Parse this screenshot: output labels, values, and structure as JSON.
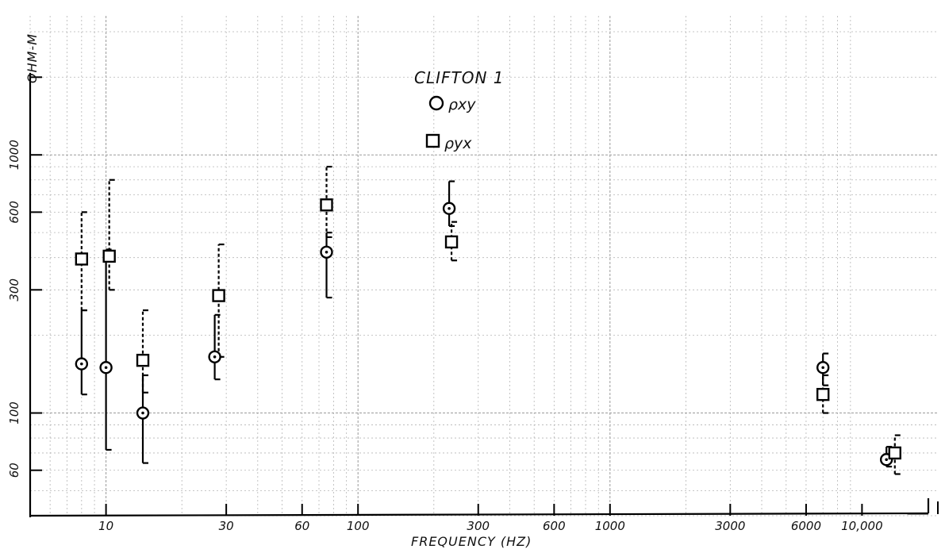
{
  "chart_data": {
    "type": "scatter",
    "title": "CLIFTON 1",
    "xlabel": "FREQUENCY (HZ)",
    "ylabel": "OHM-M",
    "x_scale": "log",
    "y_scale": "log",
    "xlim": [
      5,
      20000
    ],
    "ylim": [
      40,
      3000
    ],
    "x_ticks": [
      {
        "value": 10,
        "label": "10"
      },
      {
        "value": 30,
        "label": "30"
      },
      {
        "value": 60,
        "label": "60"
      },
      {
        "value": 100,
        "label": "100"
      },
      {
        "value": 300,
        "label": "300"
      },
      {
        "value": 600,
        "label": "600"
      },
      {
        "value": 1000,
        "label": "1000"
      },
      {
        "value": 3000,
        "label": "3000"
      },
      {
        "value": 6000,
        "label": "6000"
      },
      {
        "value": 10000,
        "label": "10,000"
      }
    ],
    "x_ticks_unlabeled": [
      20000
    ],
    "y_ticks": [
      {
        "value": 60,
        "label": "60"
      },
      {
        "value": 100,
        "label": "100"
      },
      {
        "value": 300,
        "label": "300"
      },
      {
        "value": 600,
        "label": "600"
      },
      {
        "value": 1000,
        "label": "1000"
      }
    ],
    "y_ticks_unlabeled": [
      2000
    ],
    "grid": true,
    "legend_position": "top-center",
    "series": [
      {
        "name": "ρxy",
        "marker": "circle",
        "errorbar_style": "solid",
        "points": [
          {
            "x": 8,
            "y": 155,
            "ylo": 118,
            "yhi": 250
          },
          {
            "x": 10,
            "y": 150,
            "ylo": 72,
            "yhi": 430
          },
          {
            "x": 14,
            "y": 100,
            "ylo": 64,
            "yhi": 140
          },
          {
            "x": 27,
            "y": 165,
            "ylo": 135,
            "yhi": 240
          },
          {
            "x": 75,
            "y": 420,
            "ylo": 280,
            "yhi": 500
          },
          {
            "x": 230,
            "y": 620,
            "ylo": 530,
            "yhi": 790
          },
          {
            "x": 7000,
            "y": 150,
            "ylo": 128,
            "yhi": 170
          },
          {
            "x": 12500,
            "y": 66,
            "ylo": 62,
            "yhi": 74
          }
        ]
      },
      {
        "name": "ρyx",
        "marker": "square",
        "errorbar_style": "dashed",
        "points": [
          {
            "x": 8,
            "y": 395,
            "ylo": 250,
            "yhi": 600
          },
          {
            "x": 10.3,
            "y": 405,
            "ylo": 300,
            "yhi": 800
          },
          {
            "x": 14,
            "y": 160,
            "ylo": 120,
            "yhi": 250
          },
          {
            "x": 28,
            "y": 285,
            "ylo": 165,
            "yhi": 450
          },
          {
            "x": 75,
            "y": 640,
            "ylo": 480,
            "yhi": 900
          },
          {
            "x": 235,
            "y": 460,
            "ylo": 390,
            "yhi": 550
          },
          {
            "x": 7000,
            "y": 118,
            "ylo": 100,
            "yhi": 140
          },
          {
            "x": 13500,
            "y": 70,
            "ylo": 58,
            "yhi": 82
          }
        ]
      }
    ],
    "legend": [
      {
        "label": "ρxy",
        "marker": "circle"
      },
      {
        "label": "ρyx",
        "marker": "square"
      }
    ]
  }
}
